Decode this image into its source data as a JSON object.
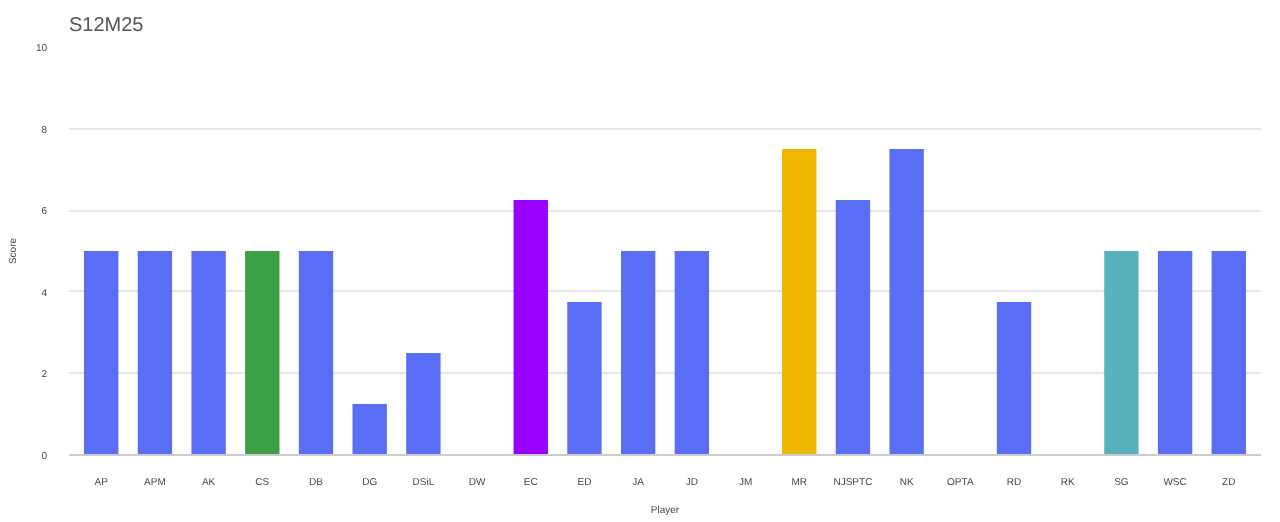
{
  "chart_data": {
    "type": "bar",
    "title": "S12M25",
    "xlabel": "Player",
    "ylabel": "Score",
    "categories": [
      "AP",
      "APM",
      "AK",
      "CS",
      "DB",
      "DG",
      "DSiL",
      "DW",
      "EC",
      "ED",
      "JA",
      "JD",
      "JM",
      "MR",
      "NJSPTC",
      "NK",
      "OPTA",
      "RD",
      "RK",
      "SG",
      "WSC",
      "ZD"
    ],
    "values": [
      5,
      5,
      5,
      5,
      5,
      1.25,
      2.5,
      0,
      6.25,
      3.75,
      5,
      5,
      0,
      7.5,
      6.25,
      7.5,
      0,
      3.75,
      0,
      5,
      5,
      5
    ],
    "colors": [
      "#5a6ef5",
      "#5a6ef5",
      "#5a6ef5",
      "#3d9f45",
      "#5a6ef5",
      "#5a6ef5",
      "#5a6ef5",
      "#5a6ef5",
      "#9900ff",
      "#5a6ef5",
      "#5a6ef5",
      "#5a6ef5",
      "#5a6ef5",
      "#efb800",
      "#5a6ef5",
      "#5a6ef5",
      "#5a6ef5",
      "#5a6ef5",
      "#5a6ef5",
      "#58b2bd",
      "#5a6ef5",
      "#5a6ef5"
    ],
    "ylim": [
      0,
      10
    ],
    "yticks": [
      0,
      2,
      4,
      6,
      8,
      10
    ],
    "grid": "y"
  }
}
